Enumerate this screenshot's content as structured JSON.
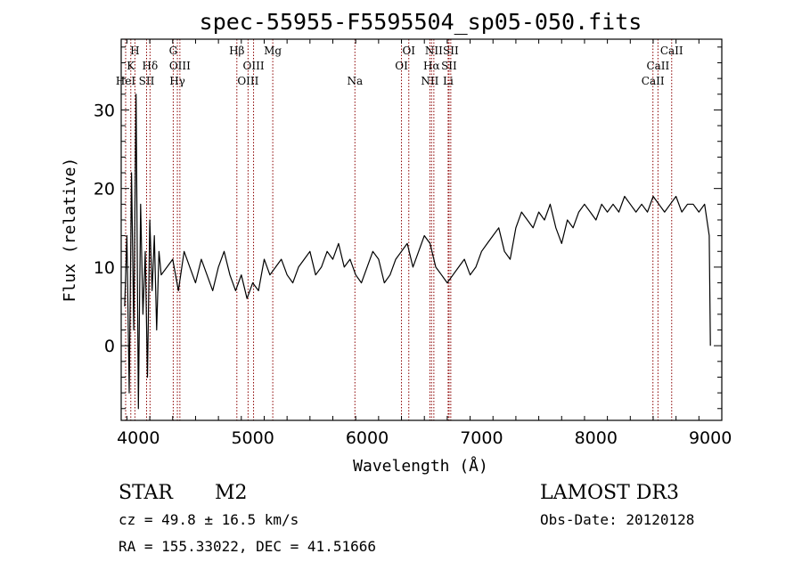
{
  "chart_data": {
    "type": "line",
    "title": "spec-55955-F5595504_sp05-050.fits",
    "xlabel": "Wavelength (Å)",
    "ylabel": "Flux (relative)",
    "xlim": [
      3850,
      9100
    ],
    "ylim": [
      -9.5,
      39
    ],
    "xticks": [
      4000,
      5000,
      6000,
      7000,
      8000,
      9000
    ],
    "yticks": [
      0,
      10,
      20,
      30
    ],
    "series": [
      {
        "name": "flux",
        "x": [
          3880,
          3900,
          3920,
          3940,
          3960,
          3980,
          4000,
          4020,
          4040,
          4060,
          4080,
          4100,
          4120,
          4140,
          4160,
          4180,
          4200,
          4250,
          4300,
          4350,
          4400,
          4450,
          4500,
          4550,
          4600,
          4650,
          4700,
          4750,
          4800,
          4850,
          4900,
          4950,
          5000,
          5050,
          5100,
          5150,
          5200,
          5250,
          5300,
          5350,
          5400,
          5450,
          5500,
          5550,
          5600,
          5650,
          5700,
          5750,
          5800,
          5850,
          5900,
          5950,
          6000,
          6050,
          6100,
          6150,
          6200,
          6250,
          6300,
          6350,
          6400,
          6450,
          6500,
          6550,
          6600,
          6650,
          6700,
          6750,
          6800,
          6850,
          6900,
          6950,
          7000,
          7050,
          7100,
          7150,
          7200,
          7250,
          7300,
          7350,
          7400,
          7450,
          7500,
          7550,
          7600,
          7650,
          7700,
          7750,
          7800,
          7850,
          7900,
          7950,
          8000,
          8050,
          8100,
          8150,
          8200,
          8250,
          8300,
          8350,
          8400,
          8450,
          8500,
          8550,
          8600,
          8650,
          8700,
          8750,
          8800,
          8850,
          8900,
          8950,
          8990,
          9000
        ],
        "values": [
          5,
          14,
          -6,
          22,
          2,
          32,
          -8,
          18,
          4,
          12,
          -4,
          16,
          7,
          14,
          2,
          12,
          9,
          10,
          11,
          7,
          12,
          10,
          8,
          11,
          9,
          7,
          10,
          12,
          9,
          7,
          9,
          6,
          8,
          7,
          11,
          9,
          10,
          11,
          9,
          8,
          10,
          11,
          12,
          9,
          10,
          12,
          11,
          13,
          10,
          11,
          9,
          8,
          10,
          12,
          11,
          8,
          9,
          11,
          12,
          13,
          10,
          12,
          14,
          13,
          10,
          9,
          8,
          9,
          10,
          11,
          9,
          10,
          12,
          13,
          14,
          15,
          12,
          11,
          15,
          17,
          16,
          15,
          17,
          16,
          18,
          15,
          13,
          16,
          15,
          17,
          18,
          17,
          16,
          18,
          17,
          18,
          17,
          19,
          18,
          17,
          18,
          17,
          19,
          18,
          17,
          18,
          19,
          17,
          18,
          18,
          17,
          18,
          14,
          0
        ]
      }
    ],
    "emission_lines": [
      {
        "label": "H",
        "wavelength": 3970,
        "row": 1
      },
      {
        "label": "K",
        "wavelength": 3934,
        "row": 2
      },
      {
        "label": "HeI",
        "wavelength": 3889,
        "row": 3
      },
      {
        "label": "Hδ",
        "wavelength": 4102,
        "row": 2
      },
      {
        "label": "SII",
        "wavelength": 4072,
        "row": 3
      },
      {
        "label": "G",
        "wavelength": 4305,
        "row": 1
      },
      {
        "label": "OIII",
        "wavelength": 4363,
        "row": 2
      },
      {
        "label": "Hγ",
        "wavelength": 4341,
        "row": 3
      },
      {
        "label": "Hβ",
        "wavelength": 4861,
        "row": 1
      },
      {
        "label": "OIII",
        "wavelength": 5007,
        "row": 2
      },
      {
        "label": "OIII",
        "wavelength": 4959,
        "row": 3
      },
      {
        "label": "Mg",
        "wavelength": 5175,
        "row": 1
      },
      {
        "label": "Na",
        "wavelength": 5893,
        "row": 3
      },
      {
        "label": "OI",
        "wavelength": 6364,
        "row": 1
      },
      {
        "label": "OI",
        "wavelength": 6300,
        "row": 2
      },
      {
        "label": "NII",
        "wavelength": 6583,
        "row": 1
      },
      {
        "label": "Hα",
        "wavelength": 6563,
        "row": 2
      },
      {
        "label": "NII",
        "wavelength": 6548,
        "row": 3
      },
      {
        "label": "SII",
        "wavelength": 6731,
        "row": 1
      },
      {
        "label": "SII",
        "wavelength": 6716,
        "row": 2
      },
      {
        "label": "Li",
        "wavelength": 6708,
        "row": 3
      },
      {
        "label": "CaII",
        "wavelength": 8662,
        "row": 1
      },
      {
        "label": "CaII",
        "wavelength": 8542,
        "row": 2
      },
      {
        "label": "CaII",
        "wavelength": 8498,
        "row": 3
      }
    ]
  },
  "info": {
    "object_class": "STAR",
    "subclass": "M2",
    "survey": "LAMOST DR3",
    "cz": "cz = 49.8 ± 16.5 km/s",
    "obs_date": "Obs-Date: 20120128",
    "coords": "RA = 155.33022, DEC =  41.51666"
  },
  "colors": {
    "line_marker": "#8b0000",
    "spectrum": "#000000"
  }
}
